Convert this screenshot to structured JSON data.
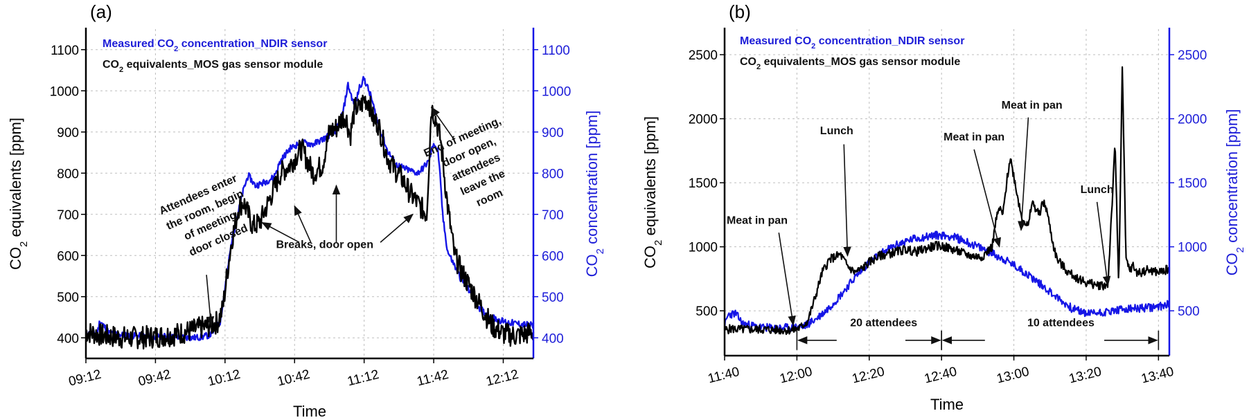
{
  "colors": {
    "measured": "#1515e6",
    "mos": "#000000",
    "right_axis": "#1d1dd8"
  },
  "chart_data": [
    {
      "type": "line",
      "panel_label": "(a)",
      "xlabel": "Time",
      "ylabel_left": {
        "pre": "CO",
        "sub": "2",
        "post": " equivalents [ppm]"
      },
      "ylabel_right": {
        "pre": "CO",
        "sub": "2",
        "post": " concentration [ppm]"
      },
      "x_unit": "minutes",
      "xlim": [
        552,
        745
      ],
      "ylim_left": [
        350,
        1150
      ],
      "ylim_right": [
        350,
        1150
      ],
      "grid": true,
      "legend_position": "top-left",
      "x_ticks": [
        {
          "v": 552,
          "label": "09:12"
        },
        {
          "v": 582,
          "label": "09:42"
        },
        {
          "v": 612,
          "label": "10:12"
        },
        {
          "v": 642,
          "label": "10:42"
        },
        {
          "v": 672,
          "label": "11:12"
        },
        {
          "v": 702,
          "label": "11:42"
        },
        {
          "v": 732,
          "label": "12:12"
        }
      ],
      "y_ticks_left": [
        400,
        500,
        600,
        700,
        800,
        900,
        1000,
        1100
      ],
      "y_ticks_right": [
        400,
        500,
        600,
        700,
        800,
        900,
        1000,
        1100
      ],
      "series": [
        {
          "name": "Measured CO2 concentration_NDIR sensor",
          "legend_parts": {
            "pre": "Measured CO",
            "sub": "2",
            "post": " concentration_NDIR sensor"
          },
          "axis": "right",
          "color": "#1515e6",
          "width": 2.4,
          "x": [
            552,
            557,
            558,
            562,
            570,
            580,
            590,
            598,
            602,
            606,
            610,
            612,
            615,
            620,
            622,
            625,
            628,
            633,
            636,
            640,
            645,
            650,
            655,
            660,
            663,
            665,
            668,
            670,
            672,
            675,
            678,
            682,
            686,
            690,
            695,
            697,
            700,
            702,
            704,
            706,
            708,
            711,
            714,
            718,
            722,
            727,
            732,
            737,
            742,
            745
          ],
          "y": [
            410,
            412,
            442,
            412,
            405,
            404,
            403,
            400,
            402,
            408,
            440,
            520,
            640,
            760,
            795,
            770,
            775,
            790,
            830,
            860,
            875,
            870,
            885,
            905,
            950,
            1015,
            960,
            1010,
            1030,
            985,
            920,
            855,
            820,
            810,
            800,
            810,
            830,
            875,
            850,
            690,
            610,
            575,
            540,
            510,
            470,
            450,
            440,
            435,
            432,
            430
          ],
          "noise": 8,
          "seed": 11
        },
        {
          "name": "CO2 equivalents_MOS gas sensor module",
          "legend_parts": {
            "pre": "CO",
            "sub": "2",
            "post": " equivalents_MOS gas sensor module"
          },
          "axis": "left",
          "color": "#000000",
          "width": 2.4,
          "x": [
            552,
            560,
            570,
            580,
            590,
            598,
            602,
            606,
            609,
            611,
            613,
            615,
            618,
            620,
            622,
            624,
            627,
            630,
            633,
            636,
            640,
            645,
            650,
            654,
            657,
            660,
            662,
            664,
            666,
            668,
            670,
            672,
            674,
            676,
            678,
            680,
            682,
            685,
            688,
            692,
            696,
            699,
            701,
            703,
            705,
            708,
            711,
            714,
            718,
            722,
            727,
            732,
            737,
            742,
            745
          ],
          "y": [
            415,
            405,
            400,
            402,
            408,
            418,
            425,
            430,
            440,
            470,
            560,
            640,
            720,
            730,
            700,
            670,
            680,
            720,
            760,
            800,
            820,
            860,
            800,
            820,
            900,
            910,
            930,
            940,
            890,
            960,
            955,
            980,
            975,
            930,
            920,
            880,
            840,
            810,
            790,
            750,
            720,
            700,
            960,
            930,
            880,
            720,
            600,
            560,
            520,
            480,
            430,
            410,
            405,
            410,
            415
          ],
          "noise": 28,
          "seed": 7
        }
      ],
      "annotations": [
        {
          "lines": [
            "Attendees enter",
            "the room, begin",
            "of meeting,",
            "door closed"
          ],
          "text_x": 601,
          "text_y": 740,
          "rotate": -24,
          "arrow_from": [
            604,
            553
          ],
          "arrow_to": [
            606,
            430
          ]
        },
        {
          "lines": [
            "Breaks, door open"
          ],
          "text_x": 655,
          "text_y": 618,
          "rotate": 0,
          "arrows": [
            {
              "from": [
                644,
                632
              ],
              "to": [
                628,
                680
              ]
            },
            {
              "from": [
                649,
                632
              ],
              "to": [
                642,
                720
              ]
            },
            {
              "from": [
                660,
                632
              ],
              "to": [
                660,
                770
              ]
            },
            {
              "from": [
                679,
                632
              ],
              "to": [
                693,
                700
              ]
            }
          ]
        },
        {
          "lines": [
            "End of meeting,",
            "door open,",
            "attendees",
            "leave the",
            "room"
          ],
          "text_x": 715,
          "text_y": 880,
          "rotate": -24,
          "arrow_from": [
            711,
            880
          ],
          "arrow_to": [
            701,
            960
          ]
        }
      ]
    },
    {
      "type": "line",
      "panel_label": "(b)",
      "xlabel": "Time",
      "ylabel_left": {
        "pre": "CO",
        "sub": "2",
        "post": " equivalents [ppm]"
      },
      "ylabel_right": {
        "pre": "CO",
        "sub": "2",
        "post": " concentration [ppm]"
      },
      "x_unit": "minutes",
      "xlim": [
        700,
        823
      ],
      "ylim_left": [
        150,
        2700
      ],
      "ylim_right": [
        150,
        2700
      ],
      "grid": true,
      "legend_position": "top-left",
      "x_ticks": [
        {
          "v": 700,
          "label": "11:40"
        },
        {
          "v": 720,
          "label": "12:00"
        },
        {
          "v": 740,
          "label": "12:20"
        },
        {
          "v": 760,
          "label": "12:40"
        },
        {
          "v": 780,
          "label": "13:00"
        },
        {
          "v": 800,
          "label": "13:20"
        },
        {
          "v": 820,
          "label": "13:40"
        }
      ],
      "y_ticks_left": [
        500,
        1000,
        1500,
        2000,
        2500
      ],
      "y_ticks_right": [
        500,
        1000,
        1500,
        2000,
        2500
      ],
      "series": [
        {
          "name": "Measured CO2 concentration_NDIR sensor",
          "legend_parts": {
            "pre": "Measured CO",
            "sub": "2",
            "post": " concentration_NDIR sensor"
          },
          "axis": "right",
          "color": "#1515e6",
          "width": 2.2,
          "x": [
            700,
            701,
            703,
            705,
            710,
            715,
            719,
            722,
            725,
            728,
            732,
            736,
            740,
            744,
            748,
            752,
            756,
            758,
            760,
            763,
            766,
            770,
            774,
            778,
            782,
            786,
            790,
            793,
            796,
            800,
            805,
            810,
            815,
            820,
            823
          ],
          "y": [
            380,
            470,
            480,
            400,
            370,
            365,
            370,
            380,
            430,
            500,
            620,
            760,
            880,
            960,
            1020,
            1060,
            1080,
            1090,
            1090,
            1080,
            1050,
            1000,
            950,
            890,
            820,
            740,
            650,
            580,
            520,
            480,
            490,
            510,
            520,
            530,
            560
          ],
          "noise": 32,
          "seed": 23
        },
        {
          "name": "CO2 equivalents_MOS gas sensor module",
          "legend_parts": {
            "pre": "CO",
            "sub": "2",
            "post": " equivalents_MOS gas sensor module"
          },
          "axis": "left",
          "color": "#000000",
          "width": 2.2,
          "x": [
            700,
            702,
            705,
            710,
            715,
            719,
            721,
            723,
            725,
            727,
            729,
            732,
            734,
            736,
            738,
            740,
            743,
            746,
            750,
            753,
            756,
            759,
            762,
            765,
            768,
            771,
            774,
            775,
            776,
            777,
            778,
            779,
            780,
            781,
            782,
            783,
            784,
            785,
            786,
            787,
            788,
            789,
            790,
            791,
            792,
            795,
            798,
            800,
            803,
            806,
            808,
            809,
            810,
            811,
            812,
            813,
            814,
            815,
            817,
            820,
            823
          ],
          "y": [
            350,
            360,
            355,
            355,
            350,
            350,
            370,
            420,
            600,
            800,
            900,
            940,
            850,
            800,
            830,
            880,
            930,
            950,
            980,
            960,
            990,
            1010,
            990,
            960,
            930,
            920,
            1000,
            1200,
            1300,
            1250,
            1500,
            1700,
            1550,
            1400,
            1250,
            1200,
            1150,
            1350,
            1300,
            1250,
            1350,
            1300,
            1150,
            1000,
            900,
            800,
            750,
            720,
            700,
            700,
            1800,
            700,
            2400,
            900,
            820,
            850,
            800,
            800,
            820,
            800,
            830
          ],
          "noise": 35,
          "seed": 5
        }
      ],
      "annotations": [
        {
          "lines": [
            "Meat in pan"
          ],
          "text_x": 709,
          "text_y": 1180,
          "rotate": 0,
          "arrow_from": [
            715,
            1110
          ],
          "arrow_to": [
            719,
            390
          ]
        },
        {
          "lines": [
            "Lunch"
          ],
          "text_x": 731,
          "text_y": 1880,
          "rotate": 0,
          "arrow_from": [
            733,
            1800
          ],
          "arrow_to": [
            734,
            930
          ]
        },
        {
          "lines": [
            "Meat in pan"
          ],
          "text_x": 769,
          "text_y": 1830,
          "rotate": 0,
          "arrow_from": [
            769,
            1760
          ],
          "arrow_to": [
            776,
            1000
          ]
        },
        {
          "lines": [
            "Meat in pan"
          ],
          "text_x": 785,
          "text_y": 2080,
          "rotate": 0,
          "arrow_from": [
            784,
            2010
          ],
          "arrow_to": [
            782,
            1130
          ]
        },
        {
          "lines": [
            "Lunch"
          ],
          "text_x": 803,
          "text_y": 1420,
          "rotate": 0,
          "arrow_from": [
            803,
            1350
          ],
          "arrow_to": [
            806,
            700
          ]
        },
        {
          "lines": [
            "20 attendees"
          ],
          "text_x": 744,
          "text_y": 380,
          "rotate": 0
        },
        {
          "lines": [
            "10 attendees"
          ],
          "text_x": 793,
          "text_y": 380,
          "rotate": 0
        }
      ],
      "brackets": [
        {
          "x1": 720,
          "x2": 760,
          "y": 270,
          "gap": [
            731,
            750
          ]
        },
        {
          "x1": 760,
          "x2": 820,
          "y": 270,
          "gap": [
            772,
            805
          ]
        }
      ]
    }
  ]
}
